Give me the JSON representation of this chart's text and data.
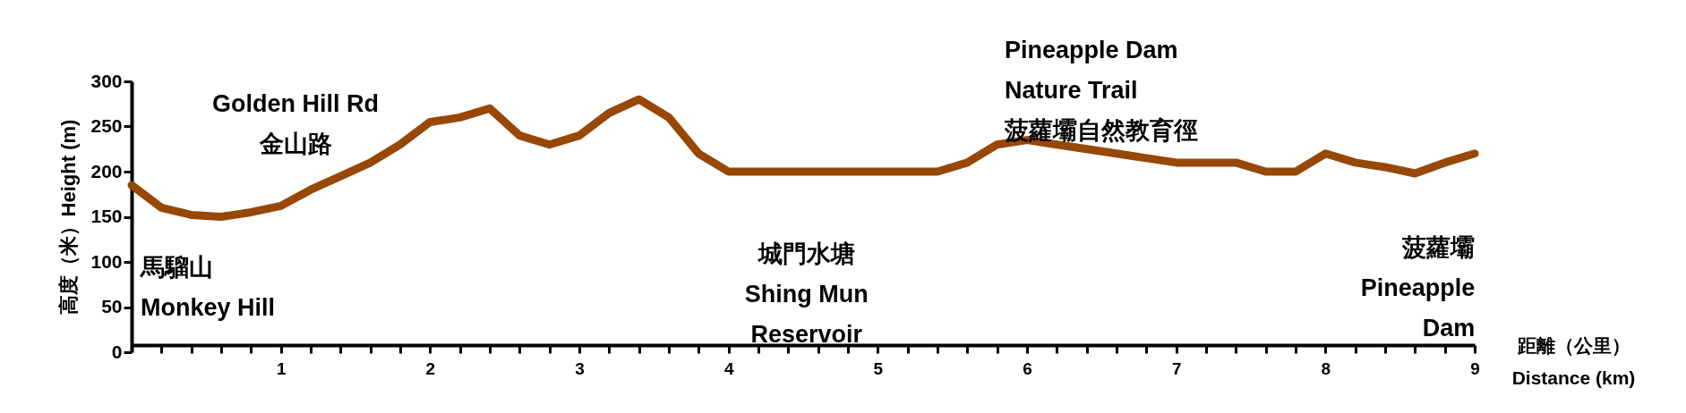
{
  "chart_data": {
    "type": "line",
    "xlabel": "距離（公里）\nDistance (km)",
    "ylabel": "高度（米）Height (m)",
    "x": [
      0,
      0.2,
      0.4,
      0.6,
      0.8,
      1,
      1.2,
      1.4,
      1.6,
      1.8,
      2,
      2.2,
      2.4,
      2.6,
      2.8,
      3,
      3.2,
      3.4,
      3.6,
      3.8,
      4,
      4.2,
      4.4,
      4.6,
      4.8,
      5,
      5.2,
      5.4,
      5.6,
      5.8,
      6,
      6.2,
      6.4,
      6.6,
      6.8,
      7,
      7.2,
      7.4,
      7.6,
      7.8,
      8,
      8.2,
      8.4,
      8.6,
      8.8,
      9
    ],
    "series": [
      {
        "color": "#974706",
        "values": [
          185,
          160,
          152,
          150,
          155,
          162,
          180,
          195,
          210,
          230,
          255,
          260,
          270,
          240,
          230,
          240,
          265,
          280,
          260,
          220,
          200,
          200,
          200,
          200,
          200,
          200,
          200,
          200,
          210,
          230,
          235,
          230,
          225,
          220,
          215,
          210,
          210,
          210,
          200,
          200,
          220,
          210,
          205,
          198,
          210,
          220
        ]
      }
    ],
    "xlim": [
      0,
      9
    ],
    "ylim": [
      0,
      300
    ],
    "xticks": [
      {
        "value": 0.2,
        "label": null
      },
      {
        "value": 0.4,
        "label": null
      },
      {
        "value": 0.6,
        "label": null
      },
      {
        "value": 0.8,
        "label": null
      },
      1,
      {
        "value": 1.2,
        "label": null
      },
      {
        "value": 1.4,
        "label": null
      },
      {
        "value": 1.6,
        "label": null
      },
      {
        "value": 1.8,
        "label": null
      },
      2,
      {
        "value": 2.2,
        "label": null
      },
      {
        "value": 2.4,
        "label": null
      },
      {
        "value": 2.6,
        "label": null
      },
      {
        "value": 2.8,
        "label": null
      },
      3,
      {
        "value": 3.2,
        "label": null
      },
      {
        "value": 3.4,
        "label": null
      },
      {
        "value": 3.6,
        "label": null
      },
      {
        "value": 3.8,
        "label": null
      },
      4,
      {
        "value": 4.2,
        "label": null
      },
      {
        "value": 4.4,
        "label": null
      },
      {
        "value": 4.6,
        "label": null
      },
      {
        "value": 4.8,
        "label": null
      },
      5,
      {
        "value": 5.2,
        "label": null
      },
      {
        "value": 5.4,
        "label": null
      },
      {
        "value": 5.6,
        "label": null
      },
      {
        "value": 5.8,
        "label": null
      },
      6,
      {
        "value": 6.2,
        "label": null
      },
      {
        "value": 6.4,
        "label": null
      },
      {
        "value": 6.6,
        "label": null
      },
      {
        "value": 6.8,
        "label": null
      },
      7,
      {
        "value": 7.2,
        "label": null
      },
      {
        "value": 7.4,
        "label": null
      },
      {
        "value": 7.6,
        "label": null
      },
      {
        "value": 7.8,
        "label": null
      },
      8,
      {
        "value": 8.2,
        "label": null
      },
      {
        "value": 8.4,
        "label": null
      },
      {
        "value": 8.6,
        "label": null
      },
      {
        "value": 8.8,
        "label": null
      },
      9
    ],
    "yticks": [
      0,
      50,
      100,
      150,
      200,
      250,
      300
    ],
    "grid": false,
    "marker": "none",
    "line_style": "solid",
    "annotations": [
      {
        "text": "馬騮山\nMonkey Hill",
        "x": 0,
        "y": 185
      },
      {
        "text": "Golden Hill Rd\n金山路",
        "x": 1.2,
        "y": 180
      },
      {
        "text": "城門水塘\nShing Mun\nReservoir",
        "x": 4.6,
        "y": 200
      },
      {
        "text": "Pineapple Dam\nNature Trail\n菠蘿壩自然教育徑",
        "x": 6,
        "y": 235
      },
      {
        "text": "菠蘿壩\nPineapple\nDam",
        "x": 8.6,
        "y": 198
      }
    ]
  }
}
